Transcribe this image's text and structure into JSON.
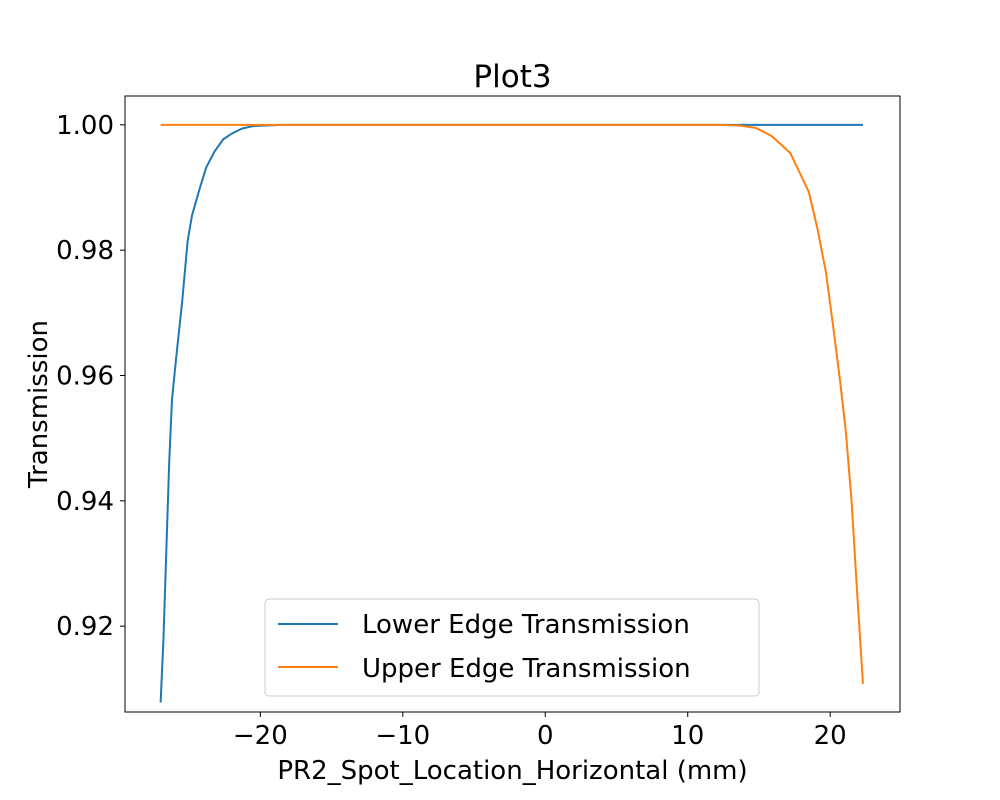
{
  "chart_data": {
    "type": "line",
    "title": "Plot3",
    "xlabel": "PR2_Spot_Location_Horizontal (mm)",
    "ylabel": "Transmission",
    "xlim": [
      -29.5,
      24.9
    ],
    "ylim": [
      0.9063,
      1.0046
    ],
    "xticks": [
      -20,
      -10,
      0,
      10,
      20
    ],
    "xtick_labels": [
      "−20",
      "−10",
      "0",
      "10",
      "20"
    ],
    "yticks": [
      0.92,
      0.94,
      0.96,
      0.98,
      1.0
    ],
    "ytick_labels": [
      "0.92",
      "0.94",
      "0.96",
      "0.98",
      "1.00"
    ],
    "grid": false,
    "legend_position": "lower-center",
    "series": [
      {
        "name": "Lower Edge Transmission",
        "color": "#1f77b4",
        "x": [
          -27.0,
          -26.8,
          -26.6,
          -26.4,
          -26.2,
          -25.9,
          -25.5,
          -25.1,
          -24.8,
          -24.3,
          -23.8,
          -23.2,
          -22.6,
          -22.0,
          -21.3,
          -20.5,
          -19.6,
          -18.5,
          -17.3,
          -16.0,
          -10.0,
          0.0,
          10.0,
          15.0,
          20.0,
          22.3
        ],
        "y": [
          0.9078,
          0.918,
          0.932,
          0.946,
          0.9562,
          0.963,
          0.9715,
          0.9815,
          0.9855,
          0.9895,
          0.9932,
          0.9958,
          0.9977,
          0.9986,
          0.9994,
          0.9998,
          0.9999,
          1.0,
          1.0,
          1.0,
          1.0,
          1.0,
          1.0,
          1.0,
          1.0,
          1.0
        ]
      },
      {
        "name": "Upper Edge Transmission",
        "color": "#ff7f0e",
        "x": [
          -27.0,
          -20.0,
          -10.0,
          0.0,
          10.0,
          12.2,
          13.6,
          14.8,
          15.9,
          17.2,
          18.5,
          19.1,
          19.7,
          20.2,
          20.7,
          21.1,
          21.5,
          21.9,
          22.3
        ],
        "y": [
          1.0,
          1.0,
          1.0,
          1.0,
          1.0,
          1.0,
          0.9999,
          0.9995,
          0.9982,
          0.9955,
          0.9893,
          0.9835,
          0.9765,
          0.968,
          0.959,
          0.951,
          0.94,
          0.925,
          0.9108
        ]
      }
    ]
  }
}
